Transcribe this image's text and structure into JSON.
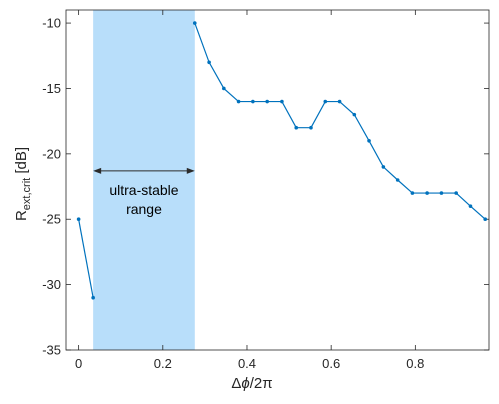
{
  "chart_data": {
    "type": "line",
    "xlabel_main": "Δ",
    "xlabel_phi": "ϕ",
    "xlabel_rest": "/2π",
    "ylabel_main": "R",
    "ylabel_sub": "ext,crit",
    "ylabel_unit": " [dB]",
    "xlim": [
      -0.03,
      0.975
    ],
    "ylim": [
      -35,
      -9
    ],
    "xticks": [
      0,
      0.2,
      0.4,
      0.6,
      0.8
    ],
    "xtick_labels": [
      "0",
      "0.2",
      "0.4",
      "0.6",
      "0.8"
    ],
    "yticks": [
      -35,
      -30,
      -25,
      -20,
      -15,
      -10
    ],
    "ytick_labels": [
      "-35",
      "-30",
      "-25",
      "-20",
      "-15",
      "-10"
    ],
    "grid": false,
    "series_color": "#0072BD",
    "band": {
      "x0": 0.0345,
      "x1": 0.276,
      "color": "#B8DEFA",
      "label_line1": "ultra-stable",
      "label_line2": "range",
      "arrow_y": -21.3
    },
    "segments": [
      {
        "x": [
          0,
          0.0345
        ],
        "y": [
          -25,
          -31
        ]
      },
      {
        "x": [
          0.276,
          0.31,
          0.345,
          0.38,
          0.414,
          0.448,
          0.483,
          0.517,
          0.552,
          0.586,
          0.62,
          0.655,
          0.69,
          0.724,
          0.758,
          0.793,
          0.828,
          0.862,
          0.897,
          0.931,
          0.966
        ],
        "y": [
          -10,
          -13,
          -15,
          -16,
          -16,
          -16,
          -16,
          -18,
          -18,
          -16,
          -16,
          -17,
          -19,
          -21,
          -22,
          -23,
          -23,
          -23,
          -23,
          -24,
          -25
        ]
      }
    ]
  }
}
